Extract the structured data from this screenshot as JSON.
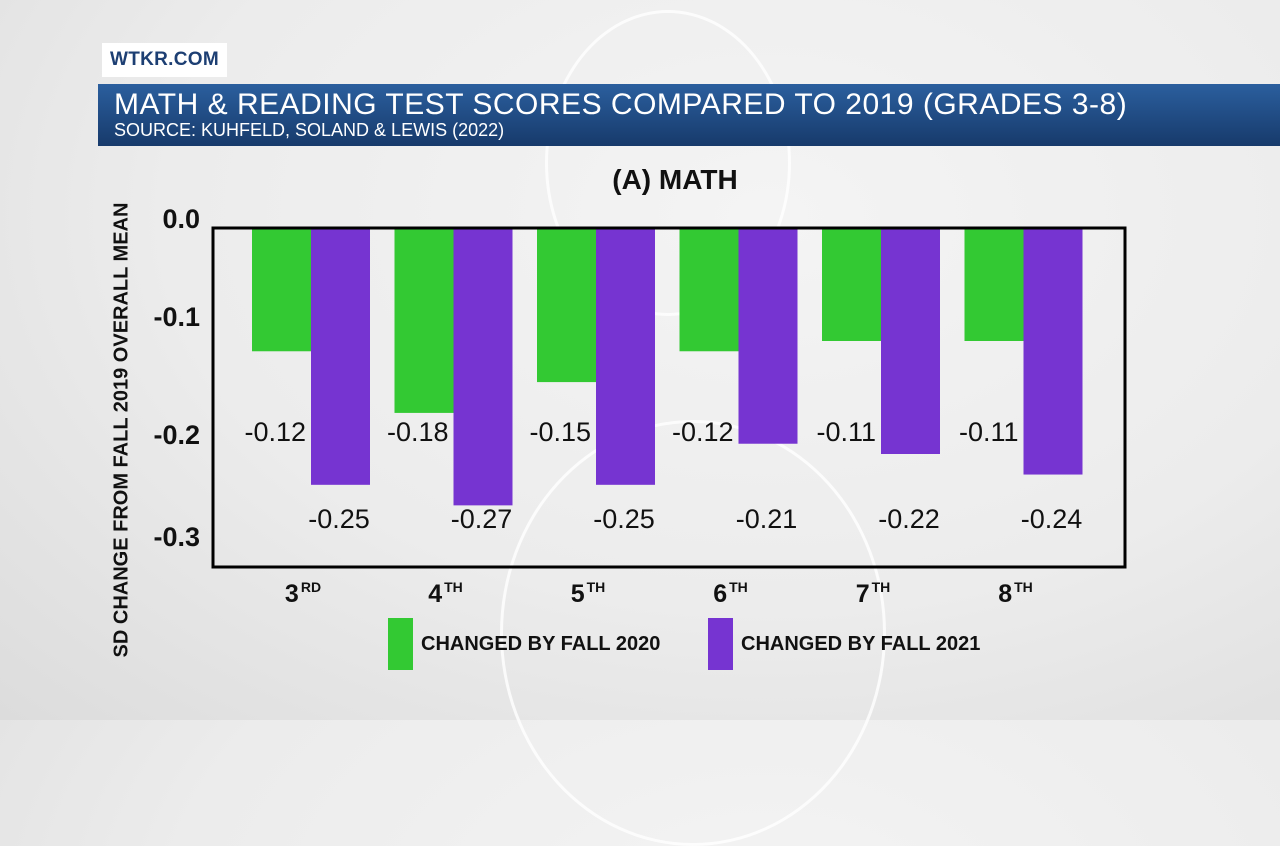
{
  "brand": "WTKR.COM",
  "header": {
    "title": "MATH & READING TEST SCORES COMPARED TO 2019 (GRADES 3-8)",
    "subtitle": "SOURCE: KUHFELD, SOLAND & LEWIS (2022)"
  },
  "chart_data": {
    "type": "bar",
    "title": "(A) MATH",
    "ylabel": "SD CHANGE FROM FALL 2019 OVERALL MEAN",
    "xlabel": "",
    "categories": [
      {
        "base": "3",
        "sup": "RD"
      },
      {
        "base": "4",
        "sup": "TH"
      },
      {
        "base": "5",
        "sup": "TH"
      },
      {
        "base": "6",
        "sup": "TH"
      },
      {
        "base": "7",
        "sup": "TH"
      },
      {
        "base": "8",
        "sup": "TH"
      }
    ],
    "yticks": [
      "0.0",
      "-0.1",
      "-0.2",
      "-0.3"
    ],
    "ylim": [
      -0.33,
      0
    ],
    "grid": false,
    "legend_position": "bottom",
    "series": [
      {
        "name": "CHANGED BY FALL 2020",
        "color": "#33c933",
        "values": [
          -0.12,
          -0.18,
          -0.15,
          -0.12,
          -0.11,
          -0.11
        ],
        "labels": [
          "-0.12",
          "-0.18",
          "-0.15",
          "-0.12",
          "-0.11",
          "-0.11"
        ]
      },
      {
        "name": "CHANGED BY FALL 2021",
        "color": "#7634d1",
        "values": [
          -0.25,
          -0.27,
          -0.25,
          -0.21,
          -0.22,
          -0.24
        ],
        "labels": [
          "-0.25",
          "-0.27",
          "-0.25",
          "-0.21",
          "-0.22",
          "-0.24"
        ]
      }
    ]
  }
}
